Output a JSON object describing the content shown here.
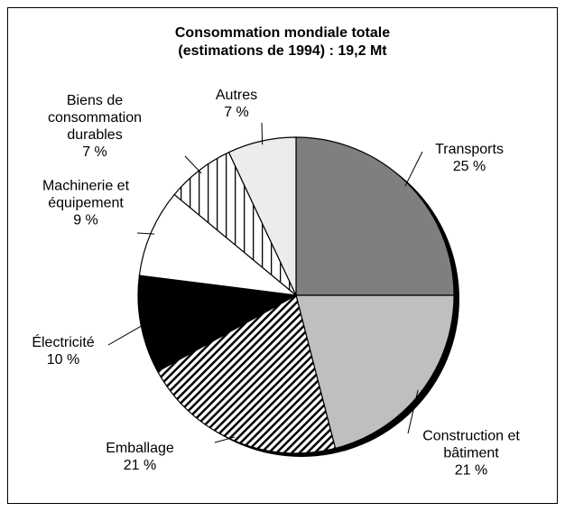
{
  "chart_data": {
    "type": "pie",
    "title": "Consommation mondiale totale",
    "subtitle": "(estimations de 1994) : 19,2 Mt",
    "categories": [
      "Transports",
      "Construction et bâtiment",
      "Emballage",
      "Électricité",
      "Machinerie et équipement",
      "Biens de consommation durables",
      "Autres"
    ],
    "values": [
      25,
      21,
      21,
      10,
      9,
      7,
      7
    ],
    "value_labels": [
      "25 %",
      "21 %",
      "21 %",
      "10 %",
      "9 %",
      "7 %",
      "7 %"
    ],
    "colors": [
      "#7f7f7f",
      "#bfbfbf",
      "url(#diag)",
      "#000000",
      "#ffffff",
      "url(#vert)",
      "#ececec"
    ]
  }
}
